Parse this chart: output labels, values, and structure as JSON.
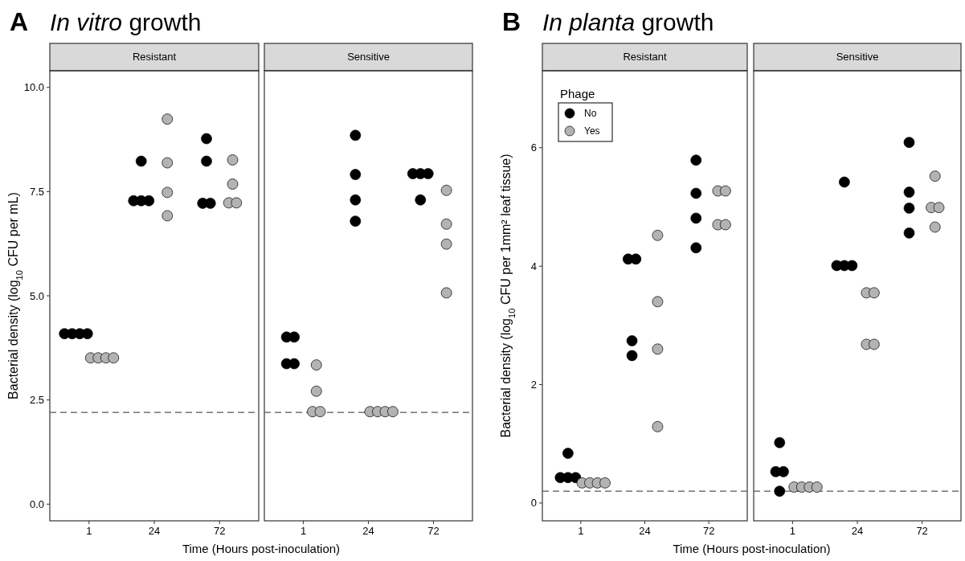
{
  "chart_data": [
    {
      "type": "scatter",
      "title": "In vitro growth",
      "annotations": [
        "A"
      ],
      "subtitle": "Resistant",
      "xlabel": "Time (Hours post-inoculation)",
      "ylabel": "Bacterial density (log$_{10}$ CFU per mL)",
      "categories": [
        "1",
        "24",
        "72"
      ],
      "ylim": [
        -0.4,
        10.4
      ],
      "yticks": [
        {
          "value": 0,
          "label": "0.0"
        },
        {
          "value": 2.5,
          "label": "2.5"
        },
        {
          "value": 5,
          "label": "5.0"
        },
        {
          "value": 7.5,
          "label": "7.5"
        },
        {
          "value": 10,
          "label": "10.0"
        }
      ],
      "marker": "circle",
      "ref_lines": [
        {
          "axis": "y",
          "value": 2.2,
          "line_style": "dashed",
          "color": "#555555"
        }
      ],
      "series": [
        {
          "color": "#000000",
          "x": [
            "1",
            "1",
            "1",
            "1",
            "24",
            "24",
            "24",
            "24",
            "72",
            "72",
            "72",
            "72"
          ],
          "values": [
            4.09,
            4.09,
            4.09,
            4.09,
            8.23,
            7.28,
            7.28,
            7.28,
            8.77,
            8.23,
            7.22,
            7.22
          ]
        },
        {
          "color": "#b3b3b3",
          "x": [
            "1",
            "1",
            "1",
            "1",
            "24",
            "24",
            "24",
            "24",
            "72",
            "72",
            "72",
            "72"
          ],
          "values": [
            3.51,
            3.51,
            3.51,
            3.51,
            9.24,
            8.19,
            7.48,
            6.92,
            8.26,
            7.68,
            7.23,
            7.23
          ]
        }
      ]
    },
    {
      "type": "scatter",
      "subtitle": "Sensitive",
      "categories": [
        "1",
        "24",
        "72"
      ],
      "ylim": [
        -0.4,
        10.4
      ],
      "tick_labels": "x",
      "marker": "circle",
      "ref_lines": [
        {
          "axis": "y",
          "value": 2.2,
          "line_style": "dashed",
          "color": "#555555"
        }
      ],
      "series": [
        {
          "color": "#000000",
          "x": [
            "1",
            "1",
            "1",
            "1",
            "24",
            "24",
            "24",
            "24",
            "72",
            "72",
            "72",
            "72"
          ],
          "values": [
            4.01,
            4.01,
            3.37,
            3.37,
            8.85,
            7.91,
            7.3,
            6.79,
            7.93,
            7.93,
            7.93,
            7.3
          ]
        },
        {
          "color": "#b3b3b3",
          "x": [
            "1",
            "1",
            "1",
            "1",
            "24",
            "24",
            "24",
            "24",
            "72",
            "72",
            "72",
            "72"
          ],
          "values": [
            3.34,
            2.71,
            2.22,
            2.22,
            2.22,
            2.22,
            2.22,
            2.22,
            7.53,
            6.72,
            6.24,
            5.07
          ]
        }
      ]
    },
    {
      "type": "scatter",
      "title": "In planta growth",
      "annotations": [
        "B"
      ],
      "subtitle": "Resistant",
      "xlabel": "Time (Hours post-inoculation)",
      "ylabel": "Bacterial density (log$_{10}$ CFU per 1mm² leaf tissue)",
      "categories": [
        "1",
        "24",
        "72"
      ],
      "ylim": [
        -0.3,
        7.3
      ],
      "yticks": [
        0,
        2,
        4,
        6
      ],
      "marker": "circle",
      "legend": "top left",
      "legend_title": "Phage",
      "ref_lines": [
        {
          "axis": "y",
          "value": 0.2,
          "line_style": "dashed",
          "color": "#555555"
        }
      ],
      "series": [
        {
          "name": "No",
          "color": "#000000",
          "x": [
            "1",
            "1",
            "1",
            "1",
            "24",
            "24",
            "24",
            "24",
            "72",
            "72",
            "72",
            "72"
          ],
          "values": [
            0.84,
            0.43,
            0.43,
            0.43,
            4.12,
            4.12,
            2.74,
            2.49,
            5.79,
            5.23,
            4.81,
            4.31
          ]
        },
        {
          "name": "Yes",
          "color": "#b3b3b3",
          "x": [
            "1",
            "1",
            "1",
            "1",
            "24",
            "24",
            "24",
            "24",
            "72",
            "72",
            "72",
            "72"
          ],
          "values": [
            0.34,
            0.34,
            0.34,
            0.34,
            4.52,
            3.4,
            2.6,
            1.29,
            5.27,
            5.27,
            4.7,
            4.7
          ]
        }
      ]
    },
    {
      "type": "scatter",
      "subtitle": "Sensitive",
      "categories": [
        "1",
        "24",
        "72"
      ],
      "ylim": [
        -0.3,
        7.3
      ],
      "tick_labels": "x",
      "marker": "circle",
      "ref_lines": [
        {
          "axis": "y",
          "value": 0.2,
          "line_style": "dashed",
          "color": "#555555"
        }
      ],
      "series": [
        {
          "color": "#000000",
          "x": [
            "1",
            "1",
            "1",
            "1",
            "24",
            "24",
            "24",
            "24",
            "72",
            "72",
            "72",
            "72"
          ],
          "values": [
            1.02,
            0.53,
            0.53,
            0.2,
            5.42,
            4.01,
            4.01,
            4.01,
            6.09,
            5.25,
            4.98,
            4.56
          ]
        },
        {
          "color": "#b3b3b3",
          "x": [
            "1",
            "1",
            "1",
            "1",
            "24",
            "24",
            "24",
            "24",
            "72",
            "72",
            "72",
            "72"
          ],
          "values": [
            0.27,
            0.27,
            0.27,
            0.27,
            3.55,
            3.55,
            2.68,
            2.68,
            5.52,
            4.99,
            4.99,
            4.66
          ]
        }
      ]
    }
  ]
}
